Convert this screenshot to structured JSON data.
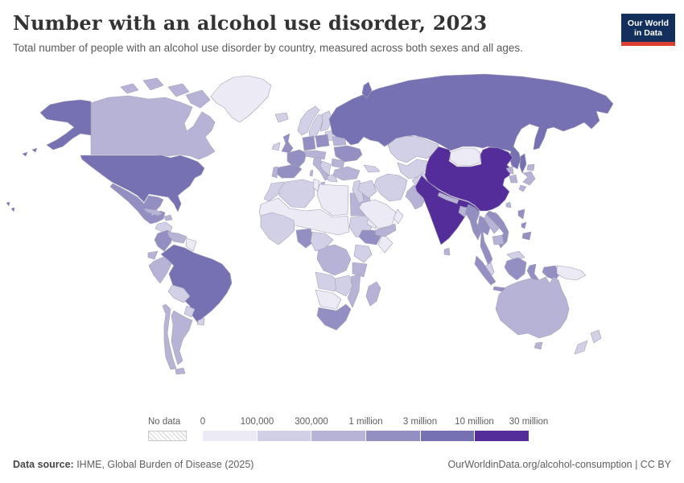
{
  "header": {
    "title": "Number with an alcohol use disorder, 2023",
    "subtitle": "Total number of people with an alcohol use disorder by country, measured across both sexes and all ages."
  },
  "logo": {
    "line1": "Our World",
    "line2": "in Data",
    "bg_color": "#12305B",
    "accent_color": "#DC3F32"
  },
  "legend": {
    "no_data_label": "No data",
    "tick_labels": [
      "0",
      "100,000",
      "300,000",
      "1 million",
      "3 million",
      "10 million",
      "30 million"
    ],
    "colors": [
      "#ECEAF4",
      "#D2D0E6",
      "#B6B3D6",
      "#938FC3",
      "#7671B3",
      "#552D9B"
    ]
  },
  "footer": {
    "source_label": "Data source:",
    "source_text": " IHME, Global Burden of Disease (2025)",
    "credit_text": "OurWorldinData.org/alcohol-consumption | CC BY"
  },
  "chart_data": {
    "type": "choropleth-map",
    "title": "Number with an alcohol use disorder",
    "year": "2023",
    "bucket_ranges": [
      "0 – 100,000",
      "100,000 – 300,000",
      "300,000 – 1 million",
      "1 – 3 million",
      "3 – 10 million",
      "10 – 30 million"
    ],
    "countries": {
      "united-states": 4,
      "canada": 2,
      "greenland": 0,
      "mexico": 3,
      "central-america": 1,
      "cuba": 2,
      "hispaniola": 2,
      "colombia": 3,
      "venezuela": 2,
      "guyanas": 0,
      "ecuador": 2,
      "peru": 2,
      "brazil": 4,
      "bolivia": 1,
      "paraguay": 1,
      "uruguay": 1,
      "chile": 2,
      "argentina": 2,
      "iceland": 1,
      "norway": 1,
      "sweden": 1,
      "finland": 1,
      "denmark": 1,
      "united-kingdom": 3,
      "ireland": 1,
      "france": 3,
      "spain": 3,
      "portugal": 2,
      "germany": 3,
      "poland": 3,
      "central-europe": 2,
      "italy": 2,
      "balkans": 1,
      "greece": 1,
      "baltics": 1,
      "belarus": 2,
      "ukraine": 3,
      "romania": 2,
      "russia": 4,
      "caucasus": 1,
      "morocco": 1,
      "algeria": 1,
      "tunisia": 0,
      "libya": 0,
      "egypt": 2,
      "sahel": 0,
      "sudan": 1,
      "eritrea-djibouti": 0,
      "ethiopia": 3,
      "somalia": 0,
      "kenya-uganda": 1,
      "tanzania": 2,
      "dr-congo": 2,
      "nigeria": 3,
      "cameroon-car": 1,
      "west-africa": 1,
      "angola": 1,
      "zambia-zimbabwe": 1,
      "mozambique": 2,
      "namibia-botswana": 0,
      "south-africa": 3,
      "madagascar": 2,
      "turkey": 2,
      "levant": 1,
      "iraq": 1,
      "iran": 1,
      "saudi-arabia": 0,
      "yemen": 2,
      "oman": 0,
      "kazakhstan": 1,
      "central-asia": 1,
      "afghanistan": 1,
      "pakistan": 2,
      "india": 5,
      "nepal": 2,
      "bangladesh": 2,
      "sri-lanka": 2,
      "china": 5,
      "mongolia": 0,
      "north-korea": 2,
      "south-korea": 2,
      "japan": 2,
      "taiwan": 2,
      "myanmar": 3,
      "thailand": 3,
      "laos": 2,
      "vietnam": 3,
      "cambodia": 2,
      "malaysia": 1,
      "indonesia": 3,
      "philippines": 3,
      "papua-new-guinea": 0,
      "australia": 2,
      "new-zealand": 1
    }
  }
}
